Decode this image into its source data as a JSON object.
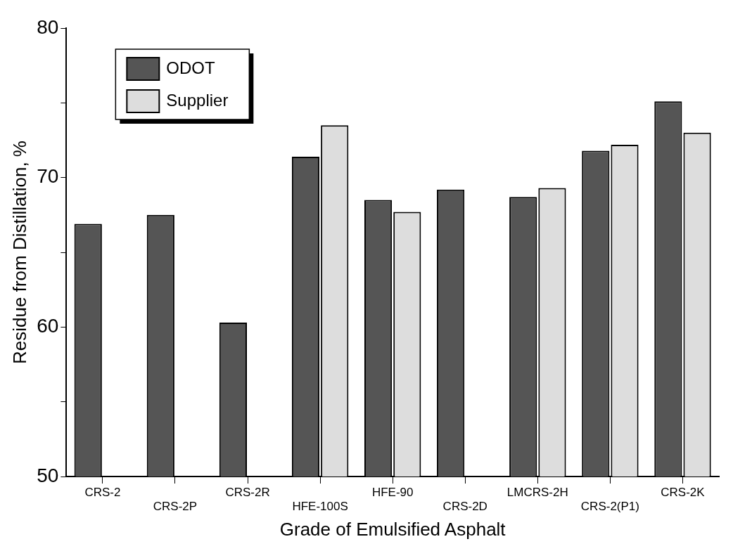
{
  "chart_data": {
    "type": "bar",
    "xlabel": "Grade of Emulsified Asphalt",
    "ylabel": "Residue from Distillation, %",
    "categories": [
      "CRS-2",
      "CRS-2P",
      "CRS-2R",
      "HFE-100S",
      "HFE-90",
      "CRS-2D",
      "LMCRS-2H",
      "CRS-2(P1)",
      "CRS-2K"
    ],
    "series": [
      {
        "name": "ODOT",
        "color": "#555555",
        "values": [
          66.9,
          67.5,
          60.3,
          71.4,
          68.5,
          69.2,
          68.7,
          71.8,
          75.1
        ]
      },
      {
        "name": "Supplier",
        "color": "#dddddd",
        "values": [
          null,
          null,
          null,
          73.5,
          67.7,
          null,
          69.3,
          72.2,
          73.0
        ]
      }
    ],
    "ylim": [
      50,
      80
    ],
    "yticks": [
      50,
      {
        "value": 55,
        "label": null
      },
      60,
      {
        "value": 65,
        "label": null
      },
      70,
      {
        "value": 75,
        "label": null
      },
      80
    ],
    "grid": false,
    "legend": "top left"
  }
}
